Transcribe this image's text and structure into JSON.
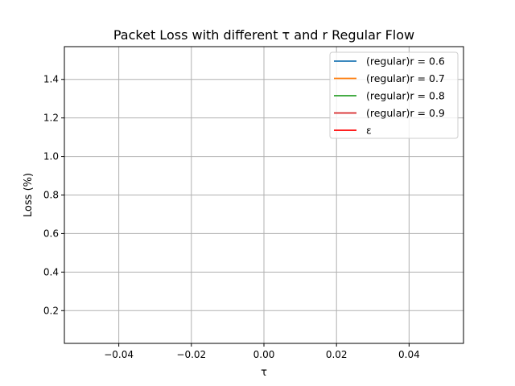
{
  "chart_data": {
    "type": "line",
    "title": "Packet Loss with different τ and r Regular Flow",
    "xlabel": "τ",
    "ylabel": "Loss (%)",
    "xlim": [
      -0.055,
      0.055
    ],
    "ylim": [
      0.03,
      1.57
    ],
    "x_ticks": [
      -0.04,
      -0.02,
      0.0,
      0.02,
      0.04
    ],
    "x_tick_labels": [
      "−0.04",
      "−0.02",
      "0.00",
      "0.02",
      "0.04"
    ],
    "y_ticks": [
      0.2,
      0.4,
      0.6,
      0.8,
      1.0,
      1.2,
      1.4
    ],
    "y_tick_labels": [
      "0.2",
      "0.4",
      "0.6",
      "0.8",
      "1.0",
      "1.2",
      "1.4"
    ],
    "grid": true,
    "legend_position": "top-right",
    "series": [
      {
        "name": "(regular)r = 0.6",
        "color": "#1f77b4",
        "x": [],
        "y": []
      },
      {
        "name": "(regular)r = 0.7",
        "color": "#ff7f0e",
        "x": [],
        "y": []
      },
      {
        "name": "(regular)r = 0.8",
        "color": "#2ca02c",
        "x": [],
        "y": []
      },
      {
        "name": "(regular)r = 0.9",
        "color": "#d62728",
        "x": [],
        "y": []
      },
      {
        "name": "ε",
        "color": "#ff0000",
        "x": [],
        "y": []
      }
    ]
  }
}
